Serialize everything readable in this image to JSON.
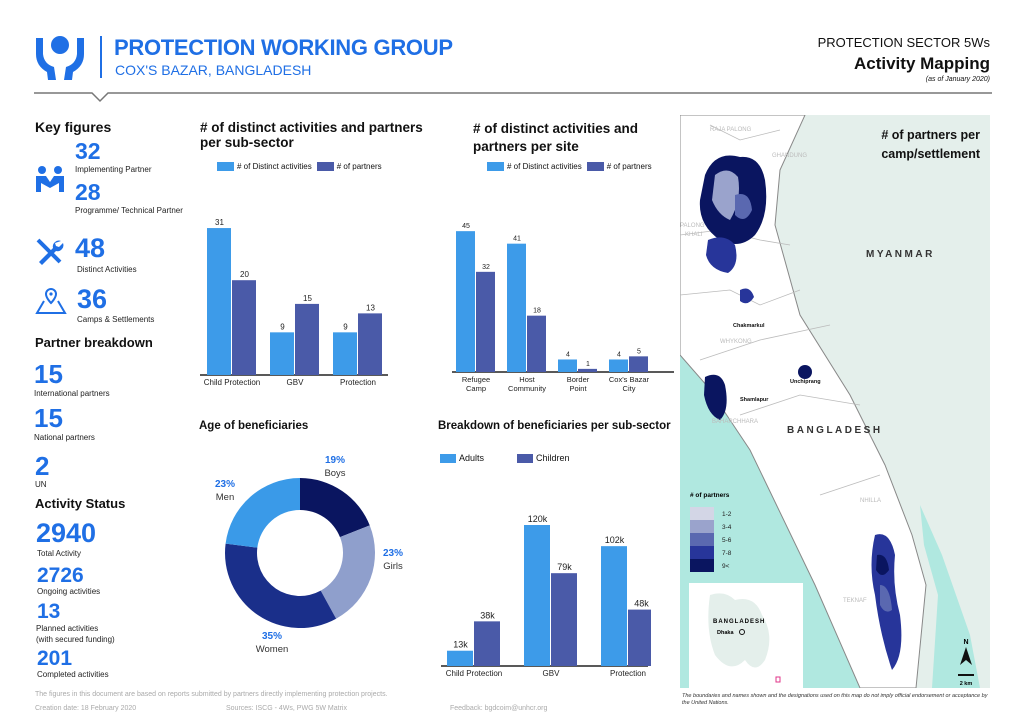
{
  "header": {
    "org_title": "PROTECTION WORKING GROUP",
    "org_subtitle": "COX'S BAZAR, BANGLADESH",
    "report_kicker": "PROTECTION SECTOR 5Ws",
    "report_title": "Activity Mapping",
    "report_date": "(as of January 2020)",
    "logo_icon": "hands-protecting-person-icon"
  },
  "colors": {
    "brand_blue": "#1f6fe5",
    "bar_light": "#3d9be9",
    "bar_dark": "#4a5aa8",
    "navy": "#0a1560"
  },
  "key_figures": {
    "title": "Key figures",
    "implementing_value": "32",
    "implementing_label": "Implementing Partner",
    "programme_value": "28",
    "programme_label": "Programme/ Technical Partner",
    "activities_value": "48",
    "activities_label": "Distinct Activities",
    "camps_value": "36",
    "camps_label": "Camps & Settlements"
  },
  "partner_breakdown": {
    "title": "Partner breakdown",
    "international_value": "15",
    "international_label": "International partners",
    "national_value": "15",
    "national_label": "National partners",
    "un_value": "2",
    "un_label": "UN"
  },
  "activity_status": {
    "title": "Activity Status",
    "total_value": "2940",
    "total_label": "Total Activity",
    "ongoing_value": "2726",
    "ongoing_label": "Ongoing activities",
    "planned_value": "13",
    "planned_label_1": "Planned activities",
    "planned_label_2": "(with secured funding)",
    "completed_value": "201",
    "completed_label": "Completed activities"
  },
  "chart_data": [
    {
      "type": "bar",
      "title": "# of distinct activities and partners per sub-sector",
      "categories": [
        "Child Protection",
        "GBV",
        "Protection"
      ],
      "series": [
        {
          "name": "# of Distinct activities",
          "values": [
            31,
            9,
            9
          ]
        },
        {
          "name": "# of partners",
          "values": [
            20,
            15,
            13
          ]
        }
      ],
      "legend": "top"
    },
    {
      "type": "bar",
      "title": "# of distinct activities and partners per site",
      "categories": [
        "Refugee Camp",
        "Host Community",
        "Border Point",
        "Cox's Bazar City"
      ],
      "series": [
        {
          "name": "# of Distinct activities",
          "values": [
            45,
            41,
            4,
            4
          ]
        },
        {
          "name": "# of partners",
          "values": [
            32,
            18,
            1,
            5
          ]
        }
      ],
      "legend": "top"
    },
    {
      "type": "pie",
      "title": "Age of beneficiaries",
      "slices": [
        {
          "label": "Boys",
          "value": 19,
          "text": "19%",
          "color": "#0a1560"
        },
        {
          "label": "Girls",
          "value": 23,
          "text": "23%",
          "color": "#8f9fcc"
        },
        {
          "label": "Women",
          "value": 35,
          "text": "35%",
          "color": "#1a2f8a"
        },
        {
          "label": "Men",
          "value": 23,
          "text": "23%",
          "color": "#3a9ae8"
        }
      ]
    },
    {
      "type": "bar",
      "title": "Breakdown of beneficiaries per sub-sector",
      "categories": [
        "Child Protection",
        "GBV",
        "Protection"
      ],
      "series": [
        {
          "name": "Adults",
          "values": [
            13,
            120,
            102
          ],
          "labels": [
            "13k",
            "120k",
            "102k"
          ]
        },
        {
          "name": "Children",
          "values": [
            38,
            79,
            48
          ],
          "labels": [
            "38k",
            "79k",
            "48k"
          ]
        }
      ],
      "unit": "k",
      "legend": "top-left"
    }
  ],
  "map": {
    "title": "# of partners per camp/settlement",
    "labels": {
      "raja_palong": "RAJA PALONG",
      "ghandung": "GHANDUNG",
      "palong_khali_1": "PALONG",
      "palong_khali_2": "KHALI",
      "myanmar": "MYANMAR",
      "chakmarkul": "Chakmarkul",
      "whykong": "WHYKONG",
      "unchiprang": "Unchiprang",
      "shamlapur": "Shamlapur",
      "baharchhara": "BAHARCHHARA",
      "bangladesh": "BANGLADESH",
      "nhilla": "NHILLA",
      "teknaf": "TEKNAF"
    },
    "legend_title": "# of partners",
    "legend": [
      {
        "label": "1-2",
        "color": "#d3d6e6"
      },
      {
        "label": "3-4",
        "color": "#9aa3cc"
      },
      {
        "label": "5-6",
        "color": "#5a68b0"
      },
      {
        "label": "7-8",
        "color": "#27359a"
      },
      {
        "label": "9<",
        "color": "#0a1560"
      }
    ],
    "inset_country": "BANGLADESH",
    "inset_city": "Dhaka",
    "north": "N",
    "scale": "2 km",
    "disclaimer": "The boundaries and names shown and the designations used on this map do not imply official endorsement or acceptance by the United Nations."
  },
  "footer": {
    "note": "The figures in this document are based on reports submitted by partners directly implementing protection projects.",
    "creation": "Creation date: 18 February 2020",
    "sources": "Sources: ISCG - 4Ws, PWG 5W Matrix",
    "feedback": "Feedback: bgdcoim@unhcr.org"
  }
}
